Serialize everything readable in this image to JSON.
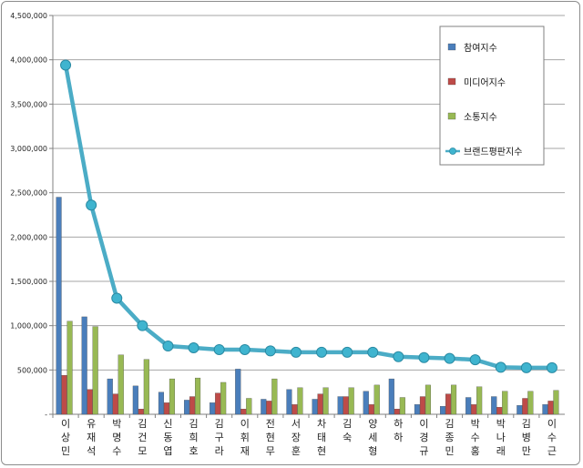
{
  "chart_data": {
    "type": "bar",
    "ylim": [
      0,
      4500000
    ],
    "y_ticks": [
      "-",
      "500,000",
      "1,000,000",
      "1,500,000",
      "2,000,000",
      "2,500,000",
      "3,000,000",
      "3,500,000",
      "4,000,000",
      "4,500,000"
    ],
    "grid": true,
    "legend_position": "top-right",
    "categories": [
      "이상민",
      "유재석",
      "박명수",
      "김건모",
      "신동엽",
      "김희호",
      "김구라",
      "이휘재",
      "전현무",
      "서장훈",
      "차태현",
      "김숙",
      "양세형",
      "하하",
      "이경규",
      "김종민",
      "박수홍",
      "박나래",
      "김병만",
      "이수근"
    ],
    "series": [
      {
        "name": "참여지수",
        "type": "bar",
        "color": "#4a7ebb",
        "values": [
          2450000,
          1100000,
          400000,
          320000,
          250000,
          160000,
          130000,
          510000,
          170000,
          280000,
          170000,
          200000,
          260000,
          400000,
          110000,
          90000,
          190000,
          200000,
          100000,
          110000
        ]
      },
      {
        "name": "미디어지수",
        "type": "bar",
        "color": "#be4b48",
        "values": [
          440000,
          280000,
          230000,
          60000,
          130000,
          200000,
          240000,
          60000,
          150000,
          110000,
          230000,
          200000,
          110000,
          60000,
          200000,
          230000,
          110000,
          80000,
          180000,
          150000
        ]
      },
      {
        "name": "소통지수",
        "type": "bar",
        "color": "#98b954",
        "values": [
          1050000,
          990000,
          670000,
          620000,
          400000,
          410000,
          360000,
          180000,
          400000,
          300000,
          300000,
          300000,
          330000,
          190000,
          330000,
          330000,
          310000,
          260000,
          260000,
          270000
        ]
      },
      {
        "name": "브랜드평판지수",
        "type": "line",
        "color": "#4bacc6",
        "values": [
          3940000,
          2360000,
          1310000,
          1000000,
          770000,
          750000,
          730000,
          730000,
          715000,
          700000,
          700000,
          700000,
          700000,
          650000,
          640000,
          630000,
          615000,
          530000,
          525000,
          525000
        ]
      }
    ]
  }
}
